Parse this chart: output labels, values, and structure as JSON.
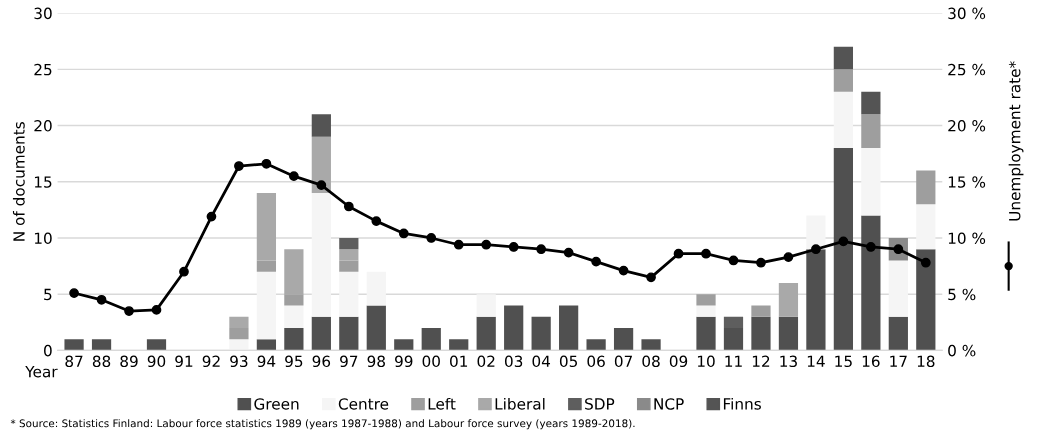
{
  "chart_data": {
    "type": "bar",
    "stacked": true,
    "ylabel": "N of documents",
    "xlabel": "Year",
    "categories": [
      "87",
      "88",
      "89",
      "90",
      "91",
      "92",
      "93",
      "94",
      "95",
      "96",
      "97",
      "98",
      "99",
      "00",
      "01",
      "02",
      "03",
      "04",
      "05",
      "06",
      "07",
      "08",
      "09",
      "10",
      "11",
      "12",
      "13",
      "14",
      "15",
      "16",
      "17",
      "18"
    ],
    "series": [
      {
        "name": "Green",
        "color": "#505050",
        "values": [
          1,
          1,
          0,
          1,
          0,
          0,
          0,
          1,
          2,
          3,
          3,
          4,
          1,
          2,
          1,
          3,
          4,
          3,
          4,
          1,
          2,
          1,
          0,
          3,
          2,
          3,
          3,
          9,
          18,
          12,
          3,
          9
        ]
      },
      {
        "name": "Centre",
        "color": "#f5f5f5",
        "values": [
          0,
          0,
          0,
          0,
          0,
          0,
          1,
          6,
          2,
          11,
          4,
          3,
          0,
          0,
          0,
          2,
          0,
          0,
          0,
          0,
          0,
          0,
          0,
          1,
          0,
          0,
          0,
          3,
          5,
          6,
          5,
          4
        ]
      },
      {
        "name": "Left",
        "color": "#9e9e9e",
        "values": [
          0,
          0,
          0,
          0,
          0,
          0,
          1,
          1,
          1,
          0,
          1,
          0,
          0,
          0,
          0,
          0,
          0,
          0,
          0,
          0,
          0,
          0,
          0,
          1,
          0,
          1,
          0,
          0,
          2,
          3,
          0,
          3
        ]
      },
      {
        "name": "Liberal",
        "color": "#a9a9a9",
        "values": [
          0,
          0,
          0,
          0,
          0,
          0,
          1,
          6,
          4,
          5,
          1,
          0,
          0,
          0,
          0,
          0,
          0,
          0,
          0,
          0,
          0,
          0,
          0,
          0,
          0,
          0,
          3,
          0,
          0,
          0,
          0,
          0
        ]
      },
      {
        "name": "SDP",
        "color": "#5e5e5e",
        "values": [
          0,
          0,
          0,
          0,
          0,
          0,
          0,
          0,
          0,
          0,
          1,
          0,
          0,
          0,
          0,
          0,
          0,
          0,
          0,
          0,
          0,
          0,
          0,
          0,
          1,
          0,
          0,
          0,
          0,
          0,
          0,
          0
        ]
      },
      {
        "name": "NCP",
        "color": "#8a8a8a",
        "values": [
          0,
          0,
          0,
          0,
          0,
          0,
          0,
          0,
          0,
          0,
          0,
          0,
          0,
          0,
          0,
          0,
          0,
          0,
          0,
          0,
          0,
          0,
          0,
          0,
          0,
          0,
          0,
          0,
          0,
          0,
          2,
          0
        ]
      },
      {
        "name": "Finns",
        "color": "#545454",
        "values": [
          0,
          0,
          0,
          0,
          0,
          0,
          0,
          0,
          0,
          2,
          0,
          0,
          0,
          0,
          0,
          0,
          0,
          0,
          0,
          0,
          0,
          0,
          0,
          0,
          0,
          0,
          0,
          0,
          2,
          2,
          0,
          0
        ]
      },
      {
        "type": "line",
        "axis": "y2",
        "color": "#000000",
        "marker": "circle",
        "line_style": "solid",
        "values": [
          5.1,
          4.5,
          3.5,
          3.6,
          7.0,
          11.9,
          16.4,
          16.6,
          15.5,
          14.7,
          12.8,
          11.5,
          10.4,
          10.0,
          9.4,
          9.4,
          9.2,
          9.0,
          8.7,
          7.9,
          7.1,
          6.5,
          8.6,
          8.6,
          8.0,
          7.8,
          8.3,
          9.0,
          9.7,
          9.2,
          9.0,
          7.8
        ]
      }
    ],
    "ylim": [
      0,
      30
    ],
    "yticks": [
      0,
      5,
      10,
      15,
      20,
      25,
      30
    ],
    "y2lim": [
      0,
      30
    ],
    "y2ticks": [
      {
        "value": 0,
        "label": "0 %"
      },
      {
        "value": 5,
        "label": "5 %"
      },
      {
        "value": 10,
        "label": "10 %"
      },
      {
        "value": 15,
        "label": "15 %"
      },
      {
        "value": 20,
        "label": "20 %"
      },
      {
        "value": 25,
        "label": "25 %"
      },
      {
        "value": 30,
        "label": "30 %"
      }
    ],
    "y2label": "Unemployment rate*",
    "grid": "y",
    "legend": "bottom",
    "annotations": [
      "* Source: Statistics Finland: Labour force statistics 1989 (years 1987-1988) and Labour force survey (years 1989-2018)."
    ]
  }
}
